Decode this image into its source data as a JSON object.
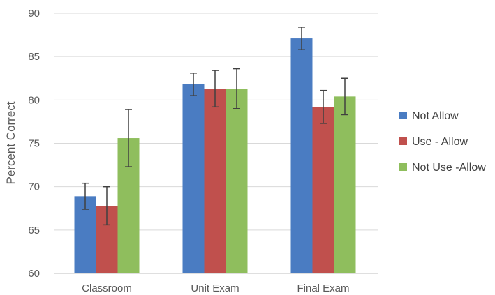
{
  "chart_data": {
    "type": "bar",
    "title": "",
    "xlabel": "",
    "ylabel": "Percent Correct",
    "ylim": [
      60,
      90
    ],
    "yticks": [
      60,
      65,
      70,
      75,
      80,
      85,
      90
    ],
    "grid": true,
    "legend_position": "right",
    "categories": [
      "Classroom",
      "Unit Exam",
      "Final Exam"
    ],
    "series": [
      {
        "name": "Not Allow",
        "color": "#4a7cc2",
        "values": [
          68.9,
          81.8,
          87.1
        ],
        "error": [
          1.5,
          1.3,
          1.3
        ]
      },
      {
        "name": "Use - Allow",
        "color": "#c0504d",
        "values": [
          67.8,
          81.3,
          79.2
        ],
        "error": [
          2.2,
          2.1,
          1.9
        ]
      },
      {
        "name": "Not Use -Allow",
        "color": "#8fbe5d",
        "values": [
          75.6,
          81.3,
          80.4
        ],
        "error": [
          3.3,
          2.3,
          2.1
        ]
      }
    ]
  }
}
